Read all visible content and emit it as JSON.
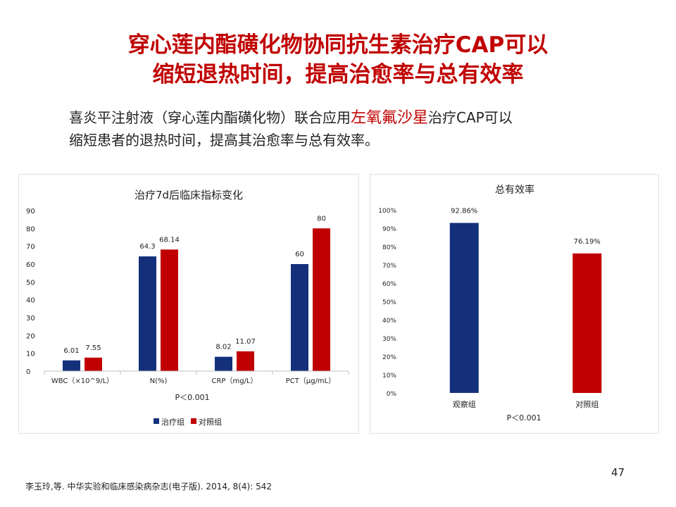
{
  "title": {
    "line1": "穿心莲内酯磺化物协同抗生素治疗CAP可以",
    "line2": "缩短退热时间，提高治愈率与总有效率"
  },
  "body": {
    "line1_pre": "喜炎平注射液（穿心莲内酯磺化物）联合应用",
    "line1_highlight": "左氧氟沙星",
    "line1_post": "治疗CAP可以",
    "line2": "缩短患者的退热时间，提高其治愈率与总有效率。"
  },
  "colors": {
    "treatment": "#14307a",
    "control": "#c00000",
    "title": "#c00000"
  },
  "chart_data": [
    {
      "type": "bar",
      "title": "治疗7d后临床指标变化",
      "categories": [
        "WBC（×10^9/L）",
        "N(%)",
        "CRP（mg/L）",
        "PCT（μg/mL）"
      ],
      "series": [
        {
          "name": "治疗组",
          "values": [
            6.01,
            64.3,
            8.02,
            60
          ]
        },
        {
          "name": "对照组",
          "values": [
            7.55,
            68.14,
            11.07,
            80
          ]
        }
      ],
      "value_labels": [
        [
          "6.01",
          "64.3",
          "8.02",
          "60"
        ],
        [
          "7.55",
          "68.14",
          "11.07",
          "80"
        ]
      ],
      "ylim": [
        0,
        90
      ],
      "yticks": [
        "0",
        "10",
        "20",
        "30",
        "40",
        "50",
        "60",
        "70",
        "80",
        "90"
      ],
      "annotation": "P＜0.001",
      "legend_position": "bottom"
    },
    {
      "type": "bar",
      "title": "总有效率",
      "categories": [
        "观察组",
        "对照组"
      ],
      "values": [
        92.86,
        76.19
      ],
      "value_labels": [
        "92.86%",
        "76.19%"
      ],
      "ylim": [
        0,
        100
      ],
      "yticks": [
        "0%",
        "10%",
        "20%",
        "30%",
        "40%",
        "50%",
        "60%",
        "70%",
        "80%",
        "90%",
        "100%"
      ],
      "annotation": "P＜0.001"
    }
  ],
  "citation": "李玉玲,等. 中华实验和临床感染病杂志(电子版). 2014, 8(4): 542",
  "page_number": "47"
}
